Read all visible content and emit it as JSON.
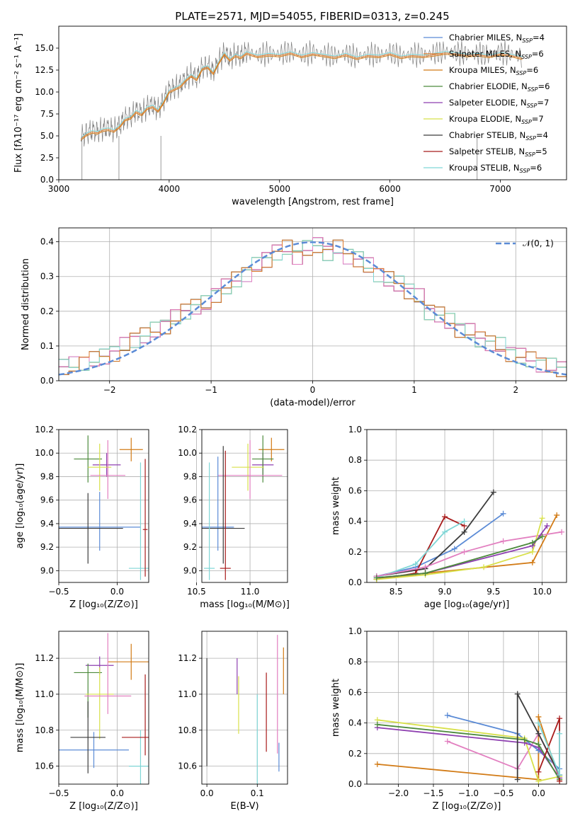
{
  "title": "PLATE=2571, MJD=54055, FIBERID=0313, z=0.245",
  "colors": {
    "chabrier_miles": "#5b8bd6",
    "salpeter_miles": "#e07a2e",
    "kroupa_miles": "#d27b16",
    "chabrier_elodie": "#4c8a3c",
    "salpeter_elodie": "#8e3fb0",
    "kroupa_elodie": "#d8e04a",
    "chabrier_stelib": "#3c3c3c",
    "salpeter_stelib": "#a81c1c",
    "kroupa_stelib": "#7fd6d6",
    "pink": "#e27fc0",
    "gaussian": "#5b8bd6"
  },
  "chart_data": [
    {
      "type": "line",
      "title": "PLATE=2571, MJD=54055, FIBERID=0313, z=0.245",
      "xlabel": "wavelength [Angstrom, rest frame]",
      "ylabel": "Flux [fλ10⁻¹⁷ erg cm⁻² s⁻¹ A⁻¹]",
      "xlim": [
        3000,
        7600
      ],
      "ylim": [
        0,
        17.5
      ],
      "xticks": [
        "3000",
        "4000",
        "5000",
        "6000",
        "7000"
      ],
      "yticks": [
        "0.0",
        "2.5",
        "5.0",
        "7.5",
        "10.0",
        "12.5",
        "15.0"
      ],
      "legend": "top-right",
      "series": [
        {
          "name": "Chabrier MILES, N_SSP=4"
        },
        {
          "name": "Salpeter MILES, N_SSP=6"
        },
        {
          "name": "Kroupa MILES, N_SSP=6"
        },
        {
          "name": "Chabrier ELODIE, N_SSP=6"
        },
        {
          "name": "Salpeter ELODIE, N_SSP=7"
        },
        {
          "name": "Kroupa ELODIE, N_SSP=7"
        },
        {
          "name": "Chabrier STELIB, N_SSP=4"
        },
        {
          "name": "Salpeter STELIB, N_SSP=5"
        },
        {
          "name": "Kroupa STELIB, N_SSP=6"
        }
      ],
      "legend_labels": [
        "Chabrier MILES, N_SSP=4",
        "Salpeter MILES, N_SSP=6",
        "Kroupa MILES, N_SSP=6",
        "Chabrier ELODIE, N_SSP=6",
        "Salpeter ELODIE, N_SSP=7",
        "Kroupa ELODIE, N_SSP=7",
        "Chabrier STELIB, N_SSP=4",
        "Salpeter STELIB, N_SSP=5",
        "Kroupa STELIB, N_SSP=6"
      ],
      "spectrum_x": [
        3200,
        3250,
        3300,
        3350,
        3400,
        3450,
        3500,
        3550,
        3600,
        3650,
        3700,
        3750,
        3800,
        3850,
        3900,
        3950,
        4000,
        4050,
        4100,
        4150,
        4200,
        4250,
        4300,
        4350,
        4400,
        4450,
        4500,
        4550,
        4600,
        4650,
        4700,
        4800,
        4900,
        5000,
        5100,
        5200,
        5300,
        5400,
        5500,
        5600,
        5700,
        5800,
        5900,
        6000,
        6100,
        6200,
        6300,
        6400,
        6500,
        6600,
        6700,
        6800,
        6900,
        7000,
        7100,
        7200
      ],
      "spectrum_y": [
        4.8,
        5.3,
        5.6,
        5.5,
        5.8,
        5.9,
        5.7,
        6.2,
        7.0,
        7.2,
        7.9,
        7.6,
        8.3,
        8.5,
        8.0,
        9.0,
        10.2,
        10.5,
        10.8,
        11.5,
        12.0,
        11.6,
        12.8,
        13.0,
        12.3,
        13.5,
        14.5,
        13.8,
        14.3,
        14.1,
        14.6,
        14.2,
        14.4,
        14.3,
        14.6,
        14.2,
        14.5,
        14.3,
        14.1,
        14.4,
        14.0,
        14.3,
        14.2,
        14.5,
        14.1,
        14.3,
        14.2,
        14.4,
        14.6,
        14.5,
        14.3,
        14.4,
        14.2,
        14.5,
        14.3,
        14.0
      ]
    },
    {
      "type": "bar",
      "xlabel": "(data-model)/error",
      "ylabel": "Normed distribution",
      "xlim": [
        -2.5,
        2.5
      ],
      "ylim": [
        0,
        0.44
      ],
      "xticks": [
        "−2",
        "−1",
        "0",
        "1",
        "2"
      ],
      "yticks": [
        "0.0",
        "0.1",
        "0.2",
        "0.3",
        "0.4"
      ],
      "legend": "top-right",
      "legend_label": "𝒩(0, 1)",
      "bin_width": 0.1,
      "x": [
        -2.45,
        -2.35,
        -2.25,
        -2.15,
        -2.05,
        -1.95,
        -1.85,
        -1.75,
        -1.65,
        -1.55,
        -1.45,
        -1.35,
        -1.25,
        -1.15,
        -1.05,
        -0.95,
        -0.85,
        -0.75,
        -0.65,
        -0.55,
        -0.45,
        -0.35,
        -0.25,
        -0.15,
        -0.05,
        0.05,
        0.15,
        0.25,
        0.35,
        0.45,
        0.55,
        0.65,
        0.75,
        0.85,
        0.95,
        1.05,
        1.15,
        1.25,
        1.35,
        1.45,
        1.55,
        1.65,
        1.75,
        1.85,
        1.95,
        2.05,
        2.15,
        2.25,
        2.35,
        2.45
      ],
      "values": [
        0.04,
        0.045,
        0.055,
        0.06,
        0.07,
        0.08,
        0.1,
        0.12,
        0.13,
        0.145,
        0.16,
        0.18,
        0.2,
        0.215,
        0.22,
        0.25,
        0.27,
        0.29,
        0.31,
        0.33,
        0.35,
        0.37,
        0.38,
        0.36,
        0.38,
        0.39,
        0.37,
        0.38,
        0.36,
        0.35,
        0.33,
        0.31,
        0.29,
        0.28,
        0.26,
        0.24,
        0.2,
        0.19,
        0.17,
        0.15,
        0.14,
        0.12,
        0.11,
        0.1,
        0.08,
        0.07,
        0.06,
        0.05,
        0.04,
        0.035
      ],
      "gaussian": "N(0,1)"
    },
    {
      "type": "scatter",
      "xlabel": "Z [log₁₀(Z/Z⊙)]",
      "ylabel": "age  [log₁₀(age/yr)]",
      "xlim": [
        -0.5,
        0.27
      ],
      "ylim": [
        8.9,
        10.2
      ],
      "xticks": [
        "−0.5",
        "0.0"
      ],
      "yticks": [
        "9.0",
        "9.2",
        "9.4",
        "9.6",
        "9.8",
        "10.0",
        "10.2"
      ],
      "points": [
        {
          "series": "Kroupa MILES",
          "x": 0.12,
          "y": 10.03,
          "xerr": 0.1,
          "yerr": [
            0.1,
            0.1
          ]
        },
        {
          "series": "Salpeter ELODIE",
          "x": -0.09,
          "y": 9.9,
          "xerr": 0.12,
          "yerr": [
            0.1,
            0.1
          ]
        },
        {
          "series": "Chabrier ELODIE",
          "x": -0.25,
          "y": 9.95,
          "xerr": 0.12,
          "yerr": [
            0.2,
            0.2
          ]
        },
        {
          "series": "Kroupa ELODIE",
          "x": -0.15,
          "y": 9.88,
          "xerr": 0.1,
          "yerr": [
            0.2,
            0.2
          ]
        },
        {
          "series": "pink",
          "x": -0.08,
          "y": 9.81,
          "xerr": 0.15,
          "yerr": [
            0.2,
            0.3
          ]
        },
        {
          "series": "Chabrier MILES",
          "x": -0.15,
          "y": 9.37,
          "xerr": 0.35,
          "yerr": [
            0.2,
            0.3
          ]
        },
        {
          "series": "Chabrier STELIB",
          "x": -0.25,
          "y": 9.36,
          "xerr": 0.3,
          "yerr": [
            0.3,
            0.3
          ]
        },
        {
          "series": "Kroupa STELIB",
          "x": 0.2,
          "y": 9.02,
          "xerr": 0.1,
          "yerr": [
            0.1,
            0.9
          ]
        },
        {
          "series": "Salpeter STELIB",
          "x": 0.24,
          "y": 9.35,
          "xerr": 0.02,
          "yerr": [
            0.4,
            0.6
          ]
        }
      ]
    },
    {
      "type": "scatter",
      "xlabel": "mass [log₁₀(M/M⊙)]",
      "ylabel": "",
      "xlim": [
        10.55,
        11.35
      ],
      "ylim": [
        8.9,
        10.2
      ],
      "xticks": [
        "10.5",
        "11.0"
      ],
      "yticks": [
        "9.0",
        "9.2",
        "9.4",
        "9.6",
        "9.8",
        "10.0",
        "10.2"
      ],
      "points": [
        {
          "series": "Kroupa MILES",
          "x": 11.2,
          "y": 10.03,
          "xerr": 0.12,
          "yerr": [
            0.1,
            0.1
          ]
        },
        {
          "series": "Salpeter ELODIE",
          "x": 11.12,
          "y": 9.9,
          "xerr": 0.1,
          "yerr": [
            0.1,
            0.1
          ]
        },
        {
          "series": "Chabrier ELODIE",
          "x": 11.12,
          "y": 9.95,
          "xerr": 0.1,
          "yerr": [
            0.2,
            0.2
          ]
        },
        {
          "series": "Kroupa ELODIE",
          "x": 10.98,
          "y": 9.88,
          "xerr": 0.15,
          "yerr": [
            0.2,
            0.2
          ]
        },
        {
          "series": "pink",
          "x": 11.0,
          "y": 9.81,
          "xerr": 0.3,
          "yerr": [
            0.2,
            0.3
          ]
        },
        {
          "series": "Chabrier MILES",
          "x": 10.7,
          "y": 9.37,
          "xerr": 0.15,
          "yerr": [
            0.2,
            0.6
          ]
        },
        {
          "series": "Chabrier STELIB",
          "x": 10.75,
          "y": 9.36,
          "xerr": 0.2,
          "yerr": [
            0.3,
            0.7
          ]
        },
        {
          "series": "Kroupa STELIB",
          "x": 10.62,
          "y": 9.02,
          "xerr": 0.05,
          "yerr": [
            0.1,
            0.9
          ]
        },
        {
          "series": "Salpeter STELIB",
          "x": 10.77,
          "y": 9.02,
          "xerr": 0.05,
          "yerr": [
            0.1,
            1.0
          ]
        }
      ]
    },
    {
      "type": "line",
      "xlabel": "age  [log₁₀(age/yr)]",
      "ylabel": "mass weight",
      "xlim": [
        8.2,
        10.25
      ],
      "ylim": [
        0,
        1
      ],
      "xticks": [
        "8.5",
        "9.0",
        "9.5",
        "10.0"
      ],
      "yticks": [
        "0.0",
        "0.2",
        "0.4",
        "0.6",
        "0.8",
        "1.0"
      ],
      "series": [
        {
          "name": "Chabrier MILES",
          "x": [
            8.3,
            8.7,
            9.1,
            9.6
          ],
          "y": [
            0.04,
            0.1,
            0.22,
            0.45
          ]
        },
        {
          "name": "Kroupa MILES",
          "x": [
            8.3,
            8.8,
            9.9,
            10.15
          ],
          "y": [
            0.02,
            0.06,
            0.13,
            0.44
          ]
        },
        {
          "name": "Chabrier STELIB",
          "x": [
            8.3,
            8.8,
            9.2,
            9.5
          ],
          "y": [
            0.04,
            0.09,
            0.33,
            0.59
          ]
        },
        {
          "name": "Salpeter STELIB",
          "x": [
            8.3,
            8.7,
            9.0,
            9.2
          ],
          "y": [
            0.02,
            0.06,
            0.43,
            0.37
          ]
        },
        {
          "name": "Kroupa STELIB",
          "x": [
            8.3,
            8.7,
            9.0,
            9.2
          ],
          "y": [
            0.03,
            0.12,
            0.33,
            0.4
          ]
        },
        {
          "name": "pink",
          "x": [
            8.3,
            8.8,
            9.2,
            9.6,
            10.2
          ],
          "y": [
            0.04,
            0.1,
            0.2,
            0.27,
            0.33
          ]
        },
        {
          "name": "Kroupa ELODIE",
          "x": [
            8.3,
            8.8,
            9.4,
            9.9,
            10.0
          ],
          "y": [
            0.02,
            0.05,
            0.1,
            0.2,
            0.42
          ]
        },
        {
          "name": "Salpeter ELODIE",
          "x": [
            8.3,
            8.8,
            9.9,
            10.05
          ],
          "y": [
            0.03,
            0.06,
            0.24,
            0.37
          ]
        },
        {
          "name": "Chabrier ELODIE",
          "x": [
            8.3,
            8.8,
            9.9,
            10.0
          ],
          "y": [
            0.03,
            0.06,
            0.26,
            0.3
          ]
        }
      ]
    },
    {
      "type": "scatter",
      "xlabel": "Z [log₁₀(Z/Z⊙)]",
      "ylabel": "mass [log₁₀(M/M⊙)]",
      "xlim": [
        -0.5,
        0.27
      ],
      "ylim": [
        10.5,
        11.35
      ],
      "xticks": [
        "−0.5",
        "0.0"
      ],
      "yticks": [
        "10.6",
        "10.8",
        "11.0",
        "11.2"
      ],
      "points": [
        {
          "series": "Kroupa MILES",
          "x": 0.12,
          "y": 11.18,
          "xerr": 0.2,
          "yerr": [
            0.1,
            0.1
          ]
        },
        {
          "series": "Salpeter ELODIE",
          "x": -0.15,
          "y": 11.16,
          "xerr": 0.12,
          "yerr": [
            0.05,
            0.05
          ]
        },
        {
          "series": "Chabrier ELODIE",
          "x": -0.25,
          "y": 11.12,
          "xerr": 0.12,
          "yerr": [
            0.25,
            0.05
          ]
        },
        {
          "series": "Kroupa ELODIE",
          "x": -0.15,
          "y": 11.0,
          "xerr": 0.12,
          "yerr": [
            0.25,
            0.15
          ]
        },
        {
          "series": "pink",
          "x": -0.08,
          "y": 10.99,
          "xerr": 0.2,
          "yerr": [
            0.1,
            0.35
          ]
        },
        {
          "series": "Chabrier MILES",
          "x": -0.2,
          "y": 10.69,
          "xerr": 0.3,
          "yerr": [
            0.1,
            0.1
          ]
        },
        {
          "series": "Chabrier STELIB",
          "x": -0.25,
          "y": 10.76,
          "xerr": 0.15,
          "yerr": [
            0.2,
            0.2
          ]
        },
        {
          "series": "Kroupa STELIB",
          "x": 0.2,
          "y": 10.6,
          "xerr": 0.1,
          "yerr": [
            0.1,
            0.2
          ]
        },
        {
          "series": "Salpeter STELIB",
          "x": 0.24,
          "y": 10.76,
          "xerr": 0.2,
          "yerr": [
            0.1,
            0.35
          ]
        }
      ]
    },
    {
      "type": "scatter",
      "xlabel": "E(B-V)",
      "ylabel": "",
      "xlim": [
        -0.01,
        0.16
      ],
      "ylim": [
        10.5,
        11.35
      ],
      "xticks": [
        "0.0",
        "0.1"
      ],
      "yticks": [
        "10.6",
        "10.8",
        "11.0",
        "11.2"
      ],
      "points": [
        {
          "series": "Chabrier STELIB",
          "x": 0.0,
          "y": 10.9,
          "yerr": [
            0.3,
            0.3
          ]
        },
        {
          "series": "Salpeter ELODIE",
          "x": 0.06,
          "y": 11.1,
          "yerr": [
            0.1,
            0.1
          ]
        },
        {
          "series": "Kroupa ELODIE",
          "x": 0.063,
          "y": 11.0,
          "yerr": [
            0.22,
            0.1
          ]
        },
        {
          "series": "Kroupa STELIB",
          "x": 0.1,
          "y": 10.75,
          "yerr": [
            0.25,
            0.25
          ]
        },
        {
          "series": "Salpeter STELIB",
          "x": 0.118,
          "y": 10.9,
          "yerr": [
            0.22,
            0.22
          ]
        },
        {
          "series": "pink",
          "x": 0.14,
          "y": 11.0,
          "yerr": [
            0.33,
            0.33
          ]
        },
        {
          "series": "Chabrier MILES",
          "x": 0.143,
          "y": 10.65,
          "yerr": [
            0.08,
            0.08
          ]
        },
        {
          "series": "Kroupa MILES",
          "x": 0.152,
          "y": 11.13,
          "yerr": [
            0.13,
            0.13
          ]
        }
      ]
    },
    {
      "type": "line",
      "xlabel": "Z [log₁₀(Z/Z⊙)]",
      "ylabel": "mass weight",
      "xlim": [
        -2.45,
        0.4
      ],
      "ylim": [
        0,
        1
      ],
      "xticks": [
        "−2.0",
        "−1.5",
        "−1.0",
        "−0.5",
        "0.0"
      ],
      "yticks": [
        "0.0",
        "0.2",
        "0.4",
        "0.6",
        "0.8",
        "1.0"
      ],
      "series": [
        {
          "name": "Kroupa MILES",
          "x": [
            -2.3,
            0.0,
            0.0,
            0.3
          ],
          "y": [
            0.13,
            0.03,
            0.44,
            0.03
          ]
        },
        {
          "name": "Chabrier MILES",
          "x": [
            -1.3,
            -0.3,
            0.0,
            0.3
          ],
          "y": [
            0.45,
            0.33,
            0.22,
            0.1
          ]
        },
        {
          "name": "pink",
          "x": [
            -1.3,
            -0.3,
            0.0,
            0.3
          ],
          "y": [
            0.28,
            0.1,
            0.33,
            0.05
          ]
        },
        {
          "name": "Kroupa ELODIE",
          "x": [
            -2.3,
            -0.2,
            0.0,
            0.3
          ],
          "y": [
            0.42,
            0.3,
            0.02,
            0.05
          ]
        },
        {
          "name": "Salpeter ELODIE",
          "x": [
            -2.3,
            -0.2,
            0.0,
            0.3
          ],
          "y": [
            0.37,
            0.27,
            0.24,
            0.04
          ]
        },
        {
          "name": "Chabrier ELODIE",
          "x": [
            -2.3,
            -0.2,
            0.0,
            0.3
          ],
          "y": [
            0.39,
            0.29,
            0.26,
            0.03
          ]
        },
        {
          "name": "Chabrier STELIB",
          "x": [
            -0.3,
            -0.3,
            0.0,
            0.3
          ],
          "y": [
            0.03,
            0.59,
            0.33,
            0.06
          ]
        },
        {
          "name": "Salpeter STELIB",
          "x": [
            0.0,
            0.3,
            0.3
          ],
          "y": [
            0.08,
            0.43,
            0.02
          ]
        },
        {
          "name": "Kroupa STELIB",
          "x": [
            0.0,
            0.3,
            0.3
          ],
          "y": [
            0.4,
            0.06,
            0.33
          ]
        }
      ]
    }
  ]
}
